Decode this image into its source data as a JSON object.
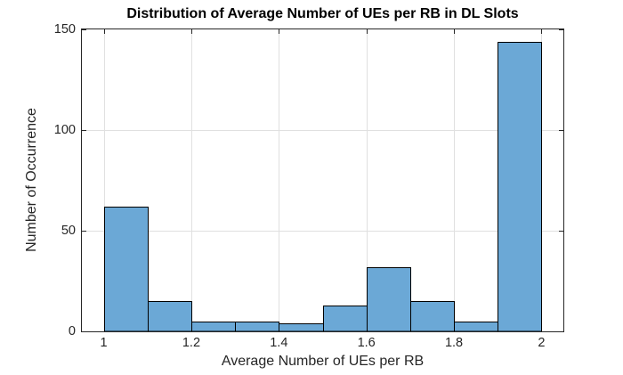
{
  "figure": {
    "background": "#ffffff"
  },
  "chart_data": {
    "type": "bar",
    "subtype": "histogram",
    "title": "Distribution of Average Number of UEs per RB in DL Slots",
    "xlabel": "Average Number of UEs per RB",
    "ylabel": "Number of Occurrence",
    "bin_edges": [
      1.0,
      1.1,
      1.2,
      1.3,
      1.4,
      1.5,
      1.6,
      1.7,
      1.8,
      1.9,
      2.0
    ],
    "values": [
      62,
      15,
      5,
      5,
      4,
      13,
      32,
      15,
      5,
      144
    ],
    "xlim": [
      0.95,
      2.05
    ],
    "ylim": [
      0,
      150
    ],
    "xticks": [
      1,
      1.2,
      1.4,
      1.6,
      1.8,
      2
    ],
    "xtick_labels": [
      "1",
      "1.2",
      "1.4",
      "1.6",
      "1.8",
      "2"
    ],
    "yticks": [
      0,
      50,
      100,
      150
    ],
    "ytick_labels": [
      "0",
      "50",
      "100",
      "150"
    ],
    "grid": true,
    "legend": null,
    "colors": {
      "bar_fill": "#6BA8D6",
      "bar_edge": "#000000",
      "grid": "#E0E0E0",
      "axis": "#262626",
      "tick_text": "#262626",
      "title_text": "#000000"
    }
  }
}
